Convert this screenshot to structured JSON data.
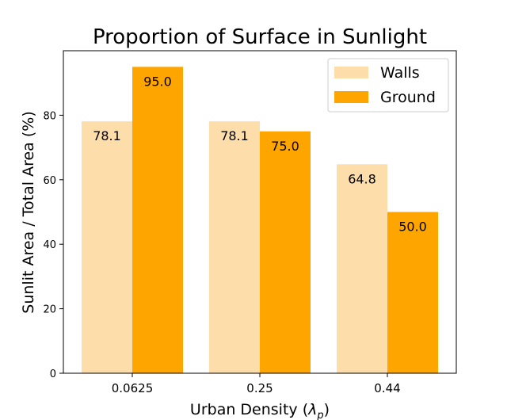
{
  "chart_data": {
    "type": "bar",
    "title": "Proportion of Surface in Sunlight",
    "xlabel": "Urban Density (",
    "xlabel_symbol": "λ",
    "xlabel_subscript": "p",
    "xlabel_close": ")",
    "ylabel": "Sunlit Area / Total Area (%)",
    "categories": [
      "0.0625",
      "0.25",
      "0.44"
    ],
    "series": [
      {
        "name": "Walls",
        "values": [
          78.1,
          78.1,
          64.8
        ],
        "value_labels": [
          "78.1",
          "78.1",
          "64.8"
        ],
        "color": "#FDDDAA"
      },
      {
        "name": "Ground",
        "values": [
          95.0,
          75.0,
          50.0
        ],
        "value_labels": [
          "95.0",
          "75.0",
          "50.0"
        ],
        "color": "#FFA500"
      }
    ],
    "ylim": [
      0,
      100
    ],
    "yticks": [
      0,
      20,
      40,
      60,
      80
    ],
    "ytick_labels": [
      "0",
      "20",
      "40",
      "60",
      "80"
    ],
    "grid": false,
    "legend": "top-right"
  }
}
